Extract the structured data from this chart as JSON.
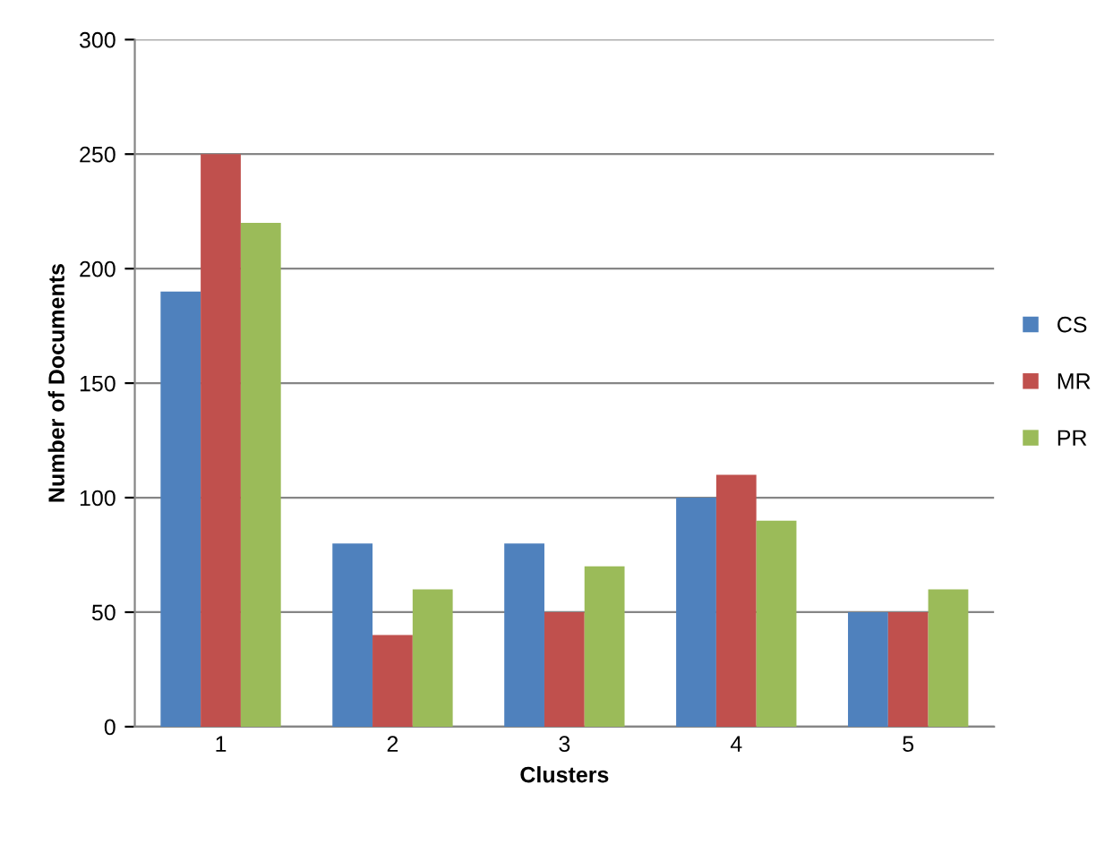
{
  "chart_data": {
    "type": "bar",
    "xlabel": "Clusters",
    "ylabel": "Number of Documents",
    "categories": [
      "1",
      "2",
      "3",
      "4",
      "5"
    ],
    "series": [
      {
        "name": "CS",
        "color": "#4f81bd",
        "values": [
          190,
          80,
          80,
          100,
          50
        ]
      },
      {
        "name": "MR",
        "color": "#c0504d",
        "values": [
          250,
          40,
          50,
          110,
          50
        ]
      },
      {
        "name": "PR",
        "color": "#9bbb59",
        "values": [
          220,
          60,
          70,
          90,
          60
        ]
      }
    ],
    "ylim": [
      0,
      300
    ],
    "yticks": [
      0,
      50,
      100,
      150,
      200,
      250,
      300
    ],
    "grid": "y",
    "legend": "right"
  }
}
